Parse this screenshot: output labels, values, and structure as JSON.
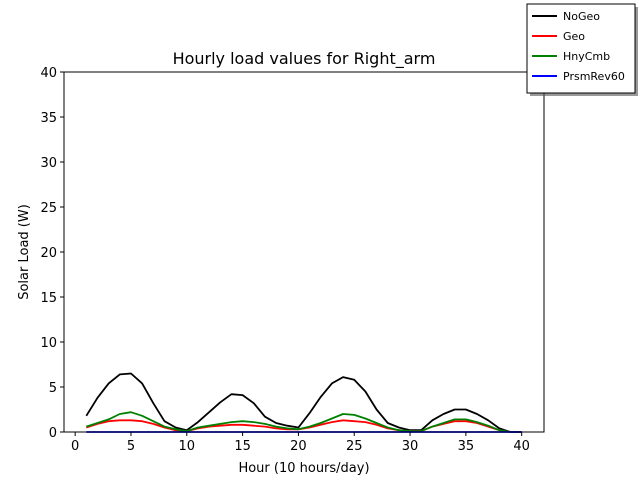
{
  "chart_data": {
    "type": "line",
    "title": "Hourly load values for Right_arm",
    "xlabel": "Hour (10 hours/day)",
    "ylabel": "Solar Load (W)",
    "xlim": [
      -1,
      42
    ],
    "ylim": [
      0,
      40
    ],
    "xticks": [
      0,
      5,
      10,
      15,
      20,
      25,
      30,
      35,
      40
    ],
    "yticks": [
      0,
      5,
      10,
      15,
      20,
      25,
      30,
      35,
      40
    ],
    "grid": false,
    "legend_position": "top-right (outside plot)",
    "x": [
      1,
      2,
      3,
      4,
      5,
      6,
      7,
      8,
      9,
      10,
      11,
      12,
      13,
      14,
      15,
      16,
      17,
      18,
      19,
      20,
      21,
      22,
      23,
      24,
      25,
      26,
      27,
      28,
      29,
      30,
      31,
      32,
      33,
      34,
      35,
      36,
      37,
      38,
      39,
      40
    ],
    "series": [
      {
        "name": "NoGeo",
        "color": "#000000",
        "values": [
          1.8,
          3.8,
          5.4,
          6.4,
          6.5,
          5.4,
          3.2,
          1.2,
          0.5,
          0.2,
          1.1,
          2.2,
          3.3,
          4.2,
          4.1,
          3.2,
          1.7,
          1.0,
          0.7,
          0.5,
          2.1,
          3.9,
          5.4,
          6.1,
          5.8,
          4.5,
          2.5,
          1.0,
          0.5,
          0.2,
          0.2,
          1.3,
          2.0,
          2.5,
          2.5,
          2.0,
          1.3,
          0.4,
          0.0,
          0.0
        ]
      },
      {
        "name": "Geo",
        "color": "#ff0000",
        "values": [
          0.5,
          0.9,
          1.2,
          1.3,
          1.3,
          1.2,
          0.9,
          0.5,
          0.2,
          0.1,
          0.4,
          0.6,
          0.7,
          0.8,
          0.8,
          0.7,
          0.6,
          0.4,
          0.3,
          0.3,
          0.5,
          0.8,
          1.1,
          1.3,
          1.2,
          1.1,
          0.8,
          0.4,
          0.2,
          0.1,
          0.1,
          0.6,
          0.9,
          1.2,
          1.2,
          1.0,
          0.6,
          0.2,
          0.0,
          0.0
        ]
      },
      {
        "name": "HnyCmb",
        "color": "#008000",
        "values": [
          0.6,
          1.0,
          1.4,
          2.0,
          2.2,
          1.8,
          1.2,
          0.6,
          0.3,
          0.1,
          0.5,
          0.7,
          0.9,
          1.1,
          1.2,
          1.1,
          0.9,
          0.6,
          0.4,
          0.3,
          0.6,
          1.0,
          1.5,
          2.0,
          1.9,
          1.5,
          1.0,
          0.5,
          0.2,
          0.1,
          0.1,
          0.6,
          1.0,
          1.4,
          1.4,
          1.1,
          0.7,
          0.2,
          0.0,
          0.0
        ]
      },
      {
        "name": "PrsmRev60",
        "color": "#0000ff",
        "values": [
          0.0,
          0.0,
          0.0,
          0.0,
          0.0,
          0.0,
          0.0,
          0.0,
          0.0,
          0.0,
          0.0,
          0.0,
          0.0,
          0.0,
          0.0,
          0.0,
          0.0,
          0.0,
          0.0,
          0.0,
          0.0,
          0.0,
          0.0,
          0.0,
          0.0,
          0.0,
          0.0,
          0.0,
          0.0,
          0.0,
          0.0,
          0.0,
          0.0,
          0.0,
          0.0,
          0.0,
          0.0,
          0.0,
          0.0,
          0.0
        ]
      }
    ]
  }
}
